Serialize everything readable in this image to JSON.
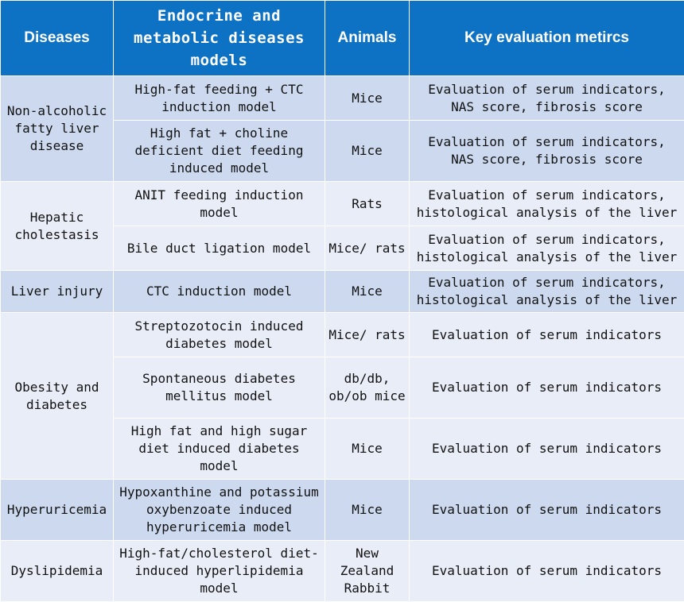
{
  "header": {
    "diseases": "Diseases",
    "models": "Endocrine and metabolic diseases models",
    "animals": "Animals",
    "metrics": "Key evaluation metircs"
  },
  "groups": [
    {
      "disease": "Non-alcoholic fatty liver disease",
      "rows": [
        {
          "model": "High-fat feeding + CTC induction model",
          "animals": "Mice",
          "metrics": "Evaluation of serum indicators, NAS score, fibrosis score"
        },
        {
          "model": "High fat + choline deficient diet feeding induced model",
          "animals": "Mice",
          "metrics": "Evaluation of serum indicators, NAS score, fibrosis score"
        }
      ]
    },
    {
      "disease": "Hepatic cholestasis",
      "rows": [
        {
          "model": "ANIT feeding induction model",
          "animals": "Rats",
          "metrics": "Evaluation of serum indicators, histological analysis of the liver"
        },
        {
          "model": "Bile duct ligation model",
          "animals": "Mice/ rats",
          "metrics": "Evaluation of serum indicators, histological analysis of the liver"
        }
      ]
    },
    {
      "disease": "Liver injury",
      "rows": [
        {
          "model": "CTC induction model",
          "animals": "Mice",
          "metrics": "Evaluation of serum indicators, histological analysis of the liver"
        }
      ]
    },
    {
      "disease": "Obesity and diabetes",
      "rows": [
        {
          "model": "Streptozotocin induced diabetes model",
          "animals": "Mice/ rats",
          "metrics": "Evaluation of serum indicators"
        },
        {
          "model": "Spontaneous diabetes mellitus model",
          "animals": "db/db, ob/ob mice",
          "metrics": "Evaluation of serum indicators"
        },
        {
          "model": "High fat and high sugar diet induced diabetes model",
          "animals": "Mice",
          "metrics": "Evaluation of serum indicators"
        }
      ]
    },
    {
      "disease": "Hyperuricemia",
      "rows": [
        {
          "model": "Hypoxanthine and potassium oxybenzoate induced hyperuricemia model",
          "animals": "Mice",
          "metrics": "Evaluation of serum indicators"
        }
      ]
    },
    {
      "disease": "Dyslipidemia",
      "rows": [
        {
          "model": "High-fat/cholesterol diet-induced hyperlipidemia model",
          "animals": "New Zealand Rabbit",
          "metrics": "Evaluation of serum indicators"
        }
      ]
    }
  ],
  "colors": {
    "header_bg": "#0e72c4",
    "row_dark": "#ccd9ee",
    "row_light": "#e8edf7"
  }
}
